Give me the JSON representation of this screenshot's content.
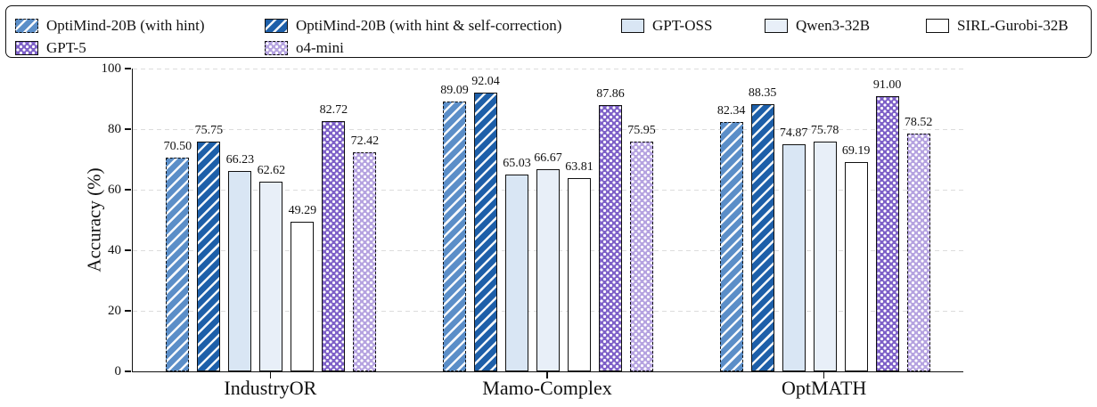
{
  "chart_data": {
    "type": "bar",
    "title": "",
    "ylabel": "Accuracy (%)",
    "xlabel": "",
    "ylim": [
      0,
      100
    ],
    "yticks": [
      0,
      20,
      40,
      60,
      80,
      100
    ],
    "grid": "horizontal-dashed",
    "legend_position": "top",
    "value_labels": "2 decimal places above each bar",
    "categories": [
      "IndustryOR",
      "Mamo-Complex",
      "OptMATH"
    ],
    "series": [
      {
        "name": "OptiMind-20B (with hint)",
        "values": [
          70.5,
          89.09,
          82.34
        ],
        "color": "#5b8ec8",
        "hatch": "diagonal",
        "edge": "dashed"
      },
      {
        "name": "OptiMind-20B (with hint & self-correction)",
        "values": [
          75.75,
          92.04,
          88.35
        ],
        "color": "#1d5fa9",
        "hatch": "diagonal",
        "edge": "solid"
      },
      {
        "name": "GPT-OSS",
        "values": [
          66.23,
          65.03,
          74.87
        ],
        "color": "#d9e6f4",
        "hatch": "none",
        "edge": "solid"
      },
      {
        "name": "Qwen3-32B",
        "values": [
          62.62,
          66.67,
          75.78
        ],
        "color": "#e8eff8",
        "hatch": "none",
        "edge": "solid"
      },
      {
        "name": "SIRL-Gurobi-32B",
        "values": [
          49.29,
          63.81,
          69.19
        ],
        "color": "#ffffff",
        "hatch": "none",
        "edge": "solid"
      },
      {
        "name": "GPT-5",
        "values": [
          82.72,
          87.86,
          91.0
        ],
        "color": "#7e61c8",
        "hatch": "dots",
        "edge": "solid"
      },
      {
        "name": "o4-mini",
        "values": [
          72.42,
          75.95,
          78.52
        ],
        "color": "#b5a3e0",
        "hatch": "dots",
        "edge": "dashed"
      }
    ]
  }
}
